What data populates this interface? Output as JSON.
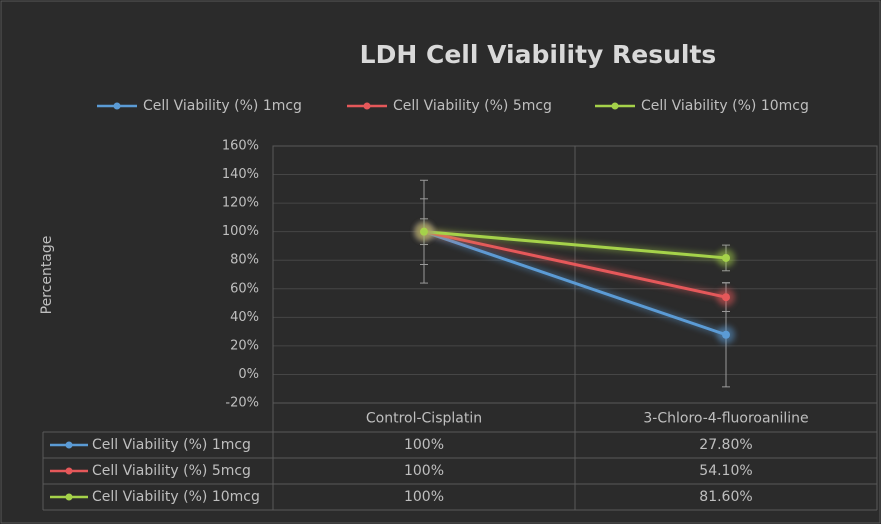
{
  "chart_data": {
    "type": "line",
    "title": "LDH Cell Viability Results",
    "y_label": "Percentage",
    "categories": [
      "Control-Cisplatin",
      "3-Chloro-4-fluoroaniline"
    ],
    "series": [
      {
        "name": "Cell Viability (%) 1mcg",
        "color": "#5b9bd5",
        "values": [
          100,
          27.8
        ],
        "value_labels": [
          "100%",
          "27.80%"
        ],
        "errors": [
          36,
          36.5
        ]
      },
      {
        "name": "Cell Viability (%) 5mcg",
        "color": "#e5585a",
        "values": [
          100,
          54.1
        ],
        "value_labels": [
          "100%",
          "54.10%"
        ],
        "errors": [
          23,
          10
        ]
      },
      {
        "name": "Cell Viability (%) 10mcg",
        "color": "#a5d24a",
        "values": [
          100,
          81.6
        ],
        "value_labels": [
          "100%",
          "81.60%"
        ],
        "errors": [
          9,
          9
        ]
      }
    ],
    "ylim": [
      -20,
      160
    ],
    "yticks": [
      {
        "value": -20,
        "label": "-20%"
      },
      {
        "value": 0,
        "label": "0%"
      },
      {
        "value": 20,
        "label": "20%"
      },
      {
        "value": 40,
        "label": "40%"
      },
      {
        "value": 60,
        "label": "60%"
      },
      {
        "value": 80,
        "label": "80%"
      },
      {
        "value": 100,
        "label": "100%"
      },
      {
        "value": 120,
        "label": "120%"
      },
      {
        "value": 140,
        "label": "140%"
      },
      {
        "value": 160,
        "label": "160%"
      }
    ],
    "grid": true,
    "legend": "top"
  }
}
